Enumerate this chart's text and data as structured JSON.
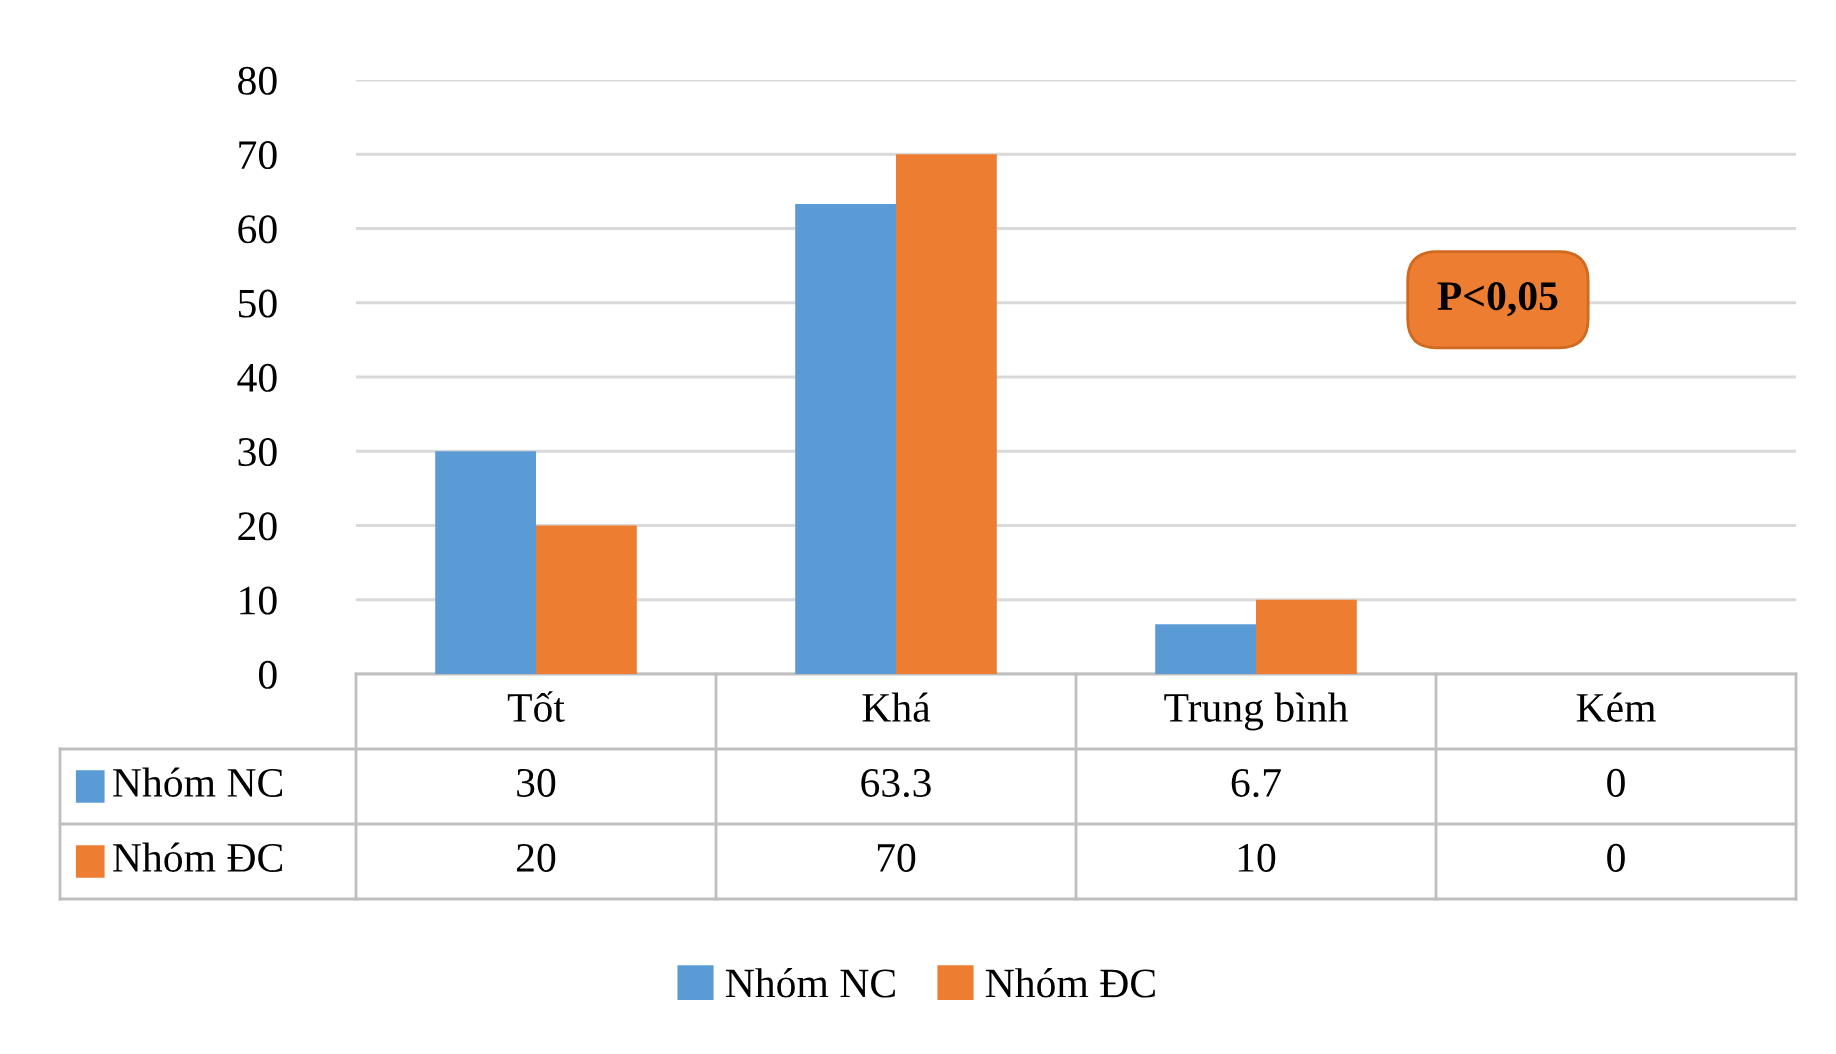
{
  "chart_data": {
    "type": "bar",
    "categories": [
      "Tốt",
      "Khá",
      "Trung bình",
      "Kém"
    ],
    "series": [
      {
        "name": "Nhóm NC",
        "color": "#5b9bd5",
        "values": [
          30,
          63.3,
          6.7,
          0
        ]
      },
      {
        "name": "Nhóm ĐC",
        "color": "#ed7d31",
        "values": [
          20,
          70,
          10,
          0
        ]
      }
    ],
    "ylim": [
      0,
      80
    ],
    "yticks": [
      0,
      10,
      20,
      30,
      40,
      50,
      60,
      70,
      80
    ],
    "grid": "y",
    "legend": "bottom",
    "data_labels": true,
    "annotations": [
      "P<0,05"
    ]
  }
}
